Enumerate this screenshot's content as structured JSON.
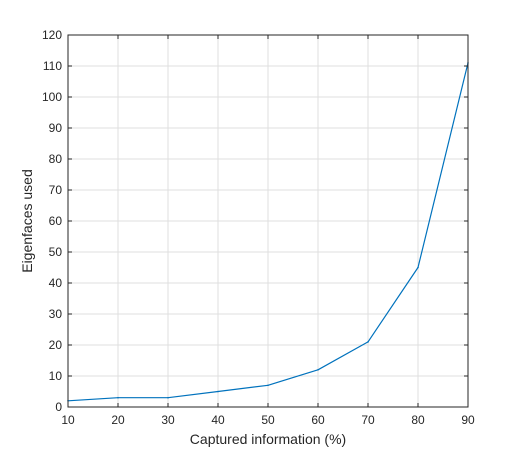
{
  "chart_data": {
    "type": "line",
    "title": "",
    "xlabel": "Captured information (%)",
    "ylabel": "Eigenfaces used",
    "x": [
      10,
      20,
      30,
      40,
      50,
      60,
      70,
      80,
      90
    ],
    "series": [
      {
        "name": "",
        "values": [
          2,
          3,
          3,
          5,
          7,
          12,
          21,
          45,
          111
        ],
        "color": "#0072BD"
      }
    ],
    "xlim": [
      10,
      90
    ],
    "ylim": [
      0,
      120
    ],
    "xticks": [
      10,
      20,
      30,
      40,
      50,
      60,
      70,
      80,
      90
    ],
    "yticks": [
      0,
      10,
      20,
      30,
      40,
      50,
      60,
      70,
      80,
      90,
      100,
      110,
      120
    ],
    "grid": true,
    "legend": "none",
    "colors": {
      "grid": "#dfdfdf",
      "axis": "#262626",
      "text": "#262626",
      "background": "#ffffff"
    }
  }
}
